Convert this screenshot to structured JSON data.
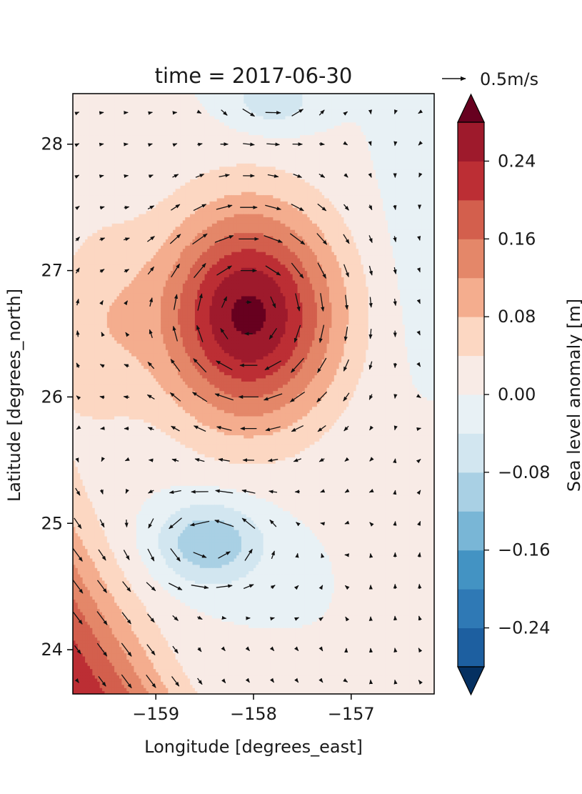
{
  "chart_data": {
    "type": "heatmap",
    "subtype": "filled-contour-with-quiver",
    "title": "time = 2017-06-30",
    "xlabel": "Longitude [degrees_east]",
    "ylabel": "Latitude [degrees_north]",
    "xlim": [
      -159.85,
      -156.15
    ],
    "ylim": [
      23.65,
      28.4
    ],
    "xticks": [
      -159,
      -158,
      -157
    ],
    "xtick_labels": [
      "−159",
      "−158",
      "−157"
    ],
    "yticks": [
      24,
      25,
      26,
      27,
      28
    ],
    "ytick_labels": [
      "24",
      "25",
      "26",
      "27",
      "28"
    ],
    "colorbar": {
      "label": "Sea level anomaly [m]",
      "levels": [
        -0.28,
        -0.24,
        -0.2,
        -0.16,
        -0.12,
        -0.08,
        -0.04,
        0.0,
        0.04,
        0.08,
        0.12,
        0.16,
        0.2,
        0.24,
        0.28
      ],
      "colors": [
        "#053061",
        "#1d5fa0",
        "#2f79b5",
        "#4393c3",
        "#79b6d6",
        "#a9d0e4",
        "#d2e6f0",
        "#e8f1f5",
        "#f8ebe6",
        "#fcd7c2",
        "#f4ad8e",
        "#e48769",
        "#d35f4d",
        "#bc2e34",
        "#9e1a2c",
        "#67001f"
      ],
      "extend": "both",
      "ticks": [
        -0.24,
        -0.16,
        -0.08,
        0.0,
        0.08,
        0.16,
        0.24
      ],
      "tick_labels": [
        "−0.24",
        "−0.16",
        "−0.08",
        "0.00",
        "0.08",
        "0.16",
        "0.24"
      ]
    },
    "field_features": [
      {
        "kind": "anticyclonic eddy",
        "center": [
          -158.05,
          26.65
        ],
        "peak": 0.28
      },
      {
        "kind": "cyclonic eddy",
        "center": [
          -158.45,
          24.85
        ],
        "peak": -0.1
      },
      {
        "kind": "positive anomaly",
        "center": [
          -159.85,
          23.7
        ],
        "peak": 0.2
      }
    ],
    "quiver": {
      "reference_label": "0.5m/s",
      "reference_speed": 0.5,
      "grid_spacing_deg": 0.25
    },
    "grid": false
  }
}
